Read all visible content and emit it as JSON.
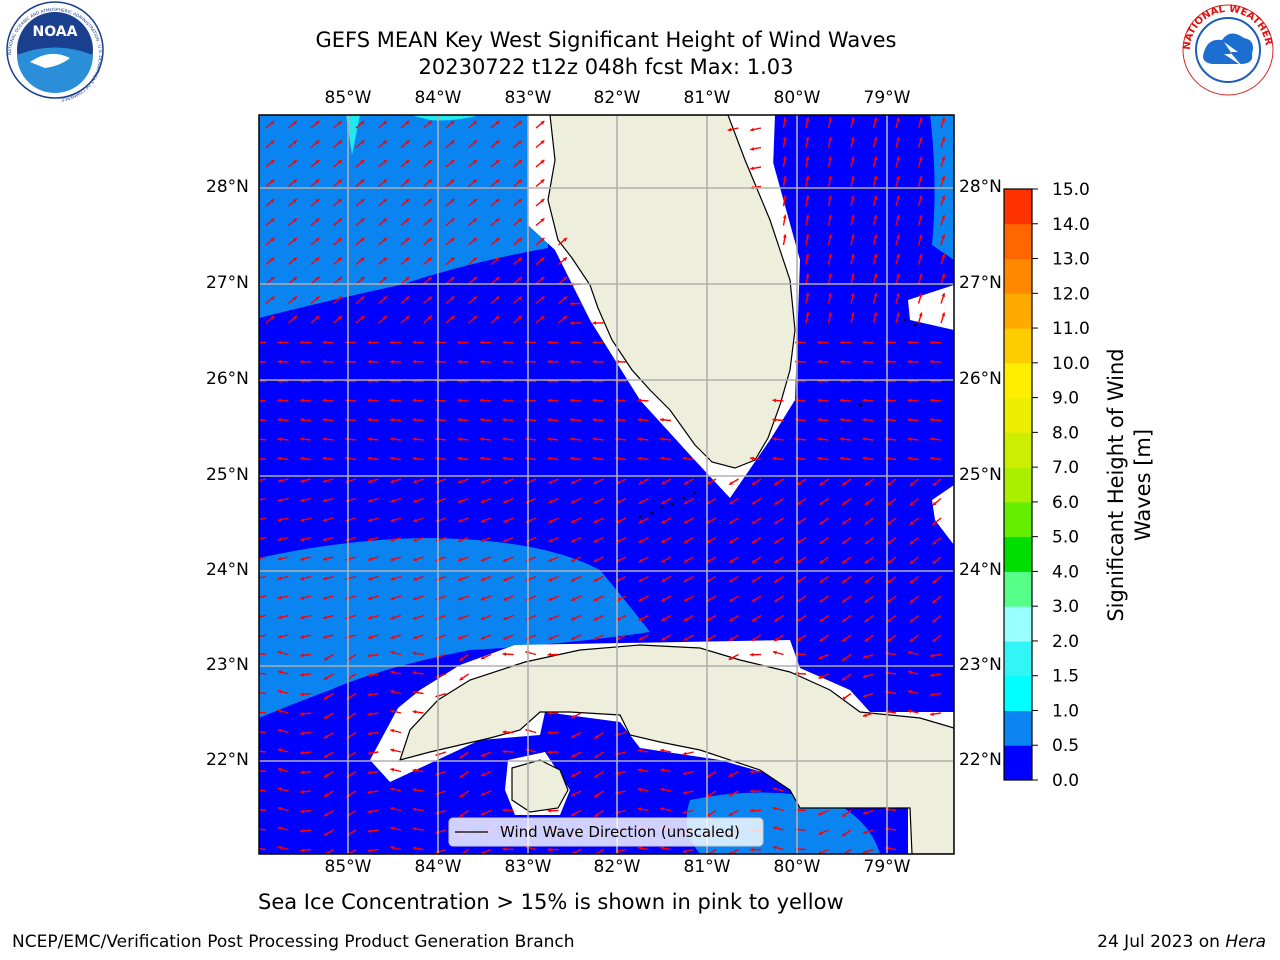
{
  "title": {
    "line1": "GEFS MEAN Key West Significant Height of Wind Waves",
    "line2": "20230722 t12z 048h fcst   Max: 1.03"
  },
  "map": {
    "lon_labels": [
      "85°W",
      "84°W",
      "83°W",
      "82°W",
      "81°W",
      "80°W",
      "79°W"
    ],
    "lat_labels": [
      "28°N",
      "27°N",
      "26°N",
      "25°N",
      "24°N",
      "23°N",
      "22°N"
    ],
    "legend_label": "Wind Wave Direction (unscaled)",
    "colors": {
      "land": "#eeeedc",
      "band_0_0.5": "#0000ff",
      "band_0.5_1.0": "#0a84f0",
      "band_1.0_1.5": "#22e8f0",
      "arrow": "#ff0000",
      "grid": "#b0b0b0"
    }
  },
  "colorbar": {
    "label_line1": "Significant Height of Wind",
    "label_line2": "Waves [m]",
    "ticks": [
      "0.0",
      "0.5",
      "1.0",
      "1.5",
      "2.0",
      "3.0",
      "4.0",
      "5.0",
      "6.0",
      "7.0",
      "8.0",
      "9.0",
      "10.0",
      "11.0",
      "12.0",
      "13.0",
      "14.0",
      "15.0"
    ],
    "colors": [
      "#0000ff",
      "#0a84f0",
      "#00ffff",
      "#33f5f5",
      "#99ffff",
      "#55ff88",
      "#00dd00",
      "#66ee00",
      "#aaee00",
      "#ccee00",
      "#eeee00",
      "#ffee00",
      "#ffcc00",
      "#ffaa00",
      "#ff8800",
      "#ff6600",
      "#ff3300",
      "#ff0000"
    ]
  },
  "note": "Sea Ice Concentration > 15% is shown in pink to yellow",
  "footer": {
    "left": "NCEP/EMC/Verification Post Processing Product Generation Branch",
    "right_prefix": "24 Jul 2023 on ",
    "right_host": "Hera"
  },
  "logos": {
    "noaa_text": "NOAA",
    "noaa_ring": "NATIONAL OCEANIC AND ATMOSPHERIC ADMINISTRATION · U.S. DEPARTMENT OF COMMERCE",
    "nws_ring": "NATIONAL WEATHER SERVICE"
  }
}
